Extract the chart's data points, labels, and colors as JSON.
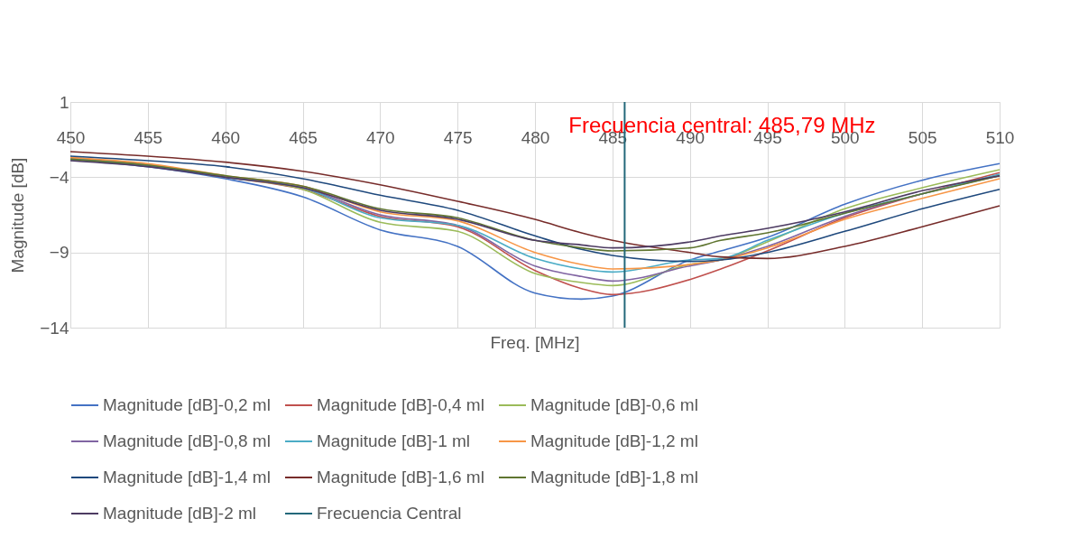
{
  "chart_data": {
    "type": "line",
    "xlabel": "Freq. [MHz]",
    "ylabel": "Magnitude [dB]",
    "x": [
      450,
      455,
      460,
      465,
      470,
      475,
      480,
      483,
      485,
      490,
      492,
      495,
      500,
      505,
      510
    ],
    "series": [
      {
        "name": "Magnitude [dB]-0,2 ml",
        "color": "#4472c4",
        "values": [
          -2.8,
          -3.3,
          -4.1,
          -5.3,
          -7.5,
          -8.6,
          -11.7,
          -12.1,
          -11.9,
          -9.5,
          -8.9,
          -8.0,
          -5.8,
          -4.2,
          -3.1
        ]
      },
      {
        "name": "Magnitude [dB]-0,4 ml",
        "color": "#c0504d",
        "values": [
          -2.7,
          -3.2,
          -4.0,
          -4.8,
          -6.6,
          -7.3,
          -10.2,
          -11.4,
          -11.8,
          -10.8,
          -10.1,
          -8.9,
          -6.7,
          -5.1,
          -3.7
        ]
      },
      {
        "name": "Magnitude [dB]-0,6 ml",
        "color": "#9bbb59",
        "values": [
          -2.8,
          -3.2,
          -4.0,
          -4.8,
          -7.0,
          -7.6,
          -10.4,
          -11.0,
          -11.2,
          -9.8,
          -9.5,
          -8.3,
          -6.1,
          -4.7,
          -3.5
        ]
      },
      {
        "name": "Magnitude [dB]-0,8 ml",
        "color": "#8064a2",
        "values": [
          -2.8,
          -3.2,
          -4.0,
          -4.7,
          -6.5,
          -7.2,
          -9.9,
          -10.6,
          -10.9,
          -9.9,
          -9.5,
          -8.6,
          -6.6,
          -5.1,
          -3.9
        ]
      },
      {
        "name": "Magnitude [dB]-1 ml",
        "color": "#4bacc6",
        "values": [
          -2.8,
          -3.2,
          -4.0,
          -4.7,
          -6.7,
          -7.2,
          -9.4,
          -10.1,
          -10.3,
          -9.5,
          -9.4,
          -8.2,
          -6.4,
          -5.1,
          -3.8
        ]
      },
      {
        "name": "Magnitude [dB]-1,2 ml",
        "color": "#f79646",
        "values": [
          -2.7,
          -3.1,
          -3.9,
          -4.6,
          -6.3,
          -6.9,
          -9.0,
          -9.8,
          -10.1,
          -9.8,
          -9.5,
          -8.7,
          -6.8,
          -5.4,
          -4.1
        ]
      },
      {
        "name": "Magnitude [dB]-1,4 ml",
        "color": "#1f497d",
        "values": [
          -2.6,
          -2.9,
          -3.3,
          -4.1,
          -5.2,
          -6.2,
          -7.9,
          -8.8,
          -9.2,
          -9.6,
          -9.5,
          -9.0,
          -7.6,
          -6.1,
          -4.8
        ]
      },
      {
        "name": "Magnitude [dB]-1,6 ml",
        "color": "#772c2a",
        "values": [
          -2.3,
          -2.6,
          -3.0,
          -3.6,
          -4.5,
          -5.6,
          -6.8,
          -7.7,
          -8.2,
          -9.0,
          -9.3,
          -9.4,
          -8.6,
          -7.3,
          -5.9
        ]
      },
      {
        "name": "Magnitude [dB]-1,8 ml",
        "color": "#5f7530",
        "values": [
          -2.8,
          -3.2,
          -3.9,
          -4.6,
          -6.1,
          -6.7,
          -8.2,
          -8.7,
          -8.9,
          -8.7,
          -8.2,
          -7.7,
          -6.4,
          -5.1,
          -3.9
        ]
      },
      {
        "name": "Magnitude [dB]-2 ml",
        "color": "#4d3b62",
        "values": [
          -2.9,
          -3.3,
          -4.0,
          -4.7,
          -6.2,
          -6.8,
          -8.2,
          -8.5,
          -8.7,
          -8.3,
          -7.9,
          -7.4,
          -6.3,
          -4.9,
          -3.9
        ]
      }
    ],
    "ref_lines": [
      {
        "axis": "x",
        "value": 485.79,
        "label": "Frecuencia Central",
        "color": "#23687a"
      }
    ],
    "annotations": [
      {
        "text": "Frecuencia central: 485,79 MHz",
        "x": 485.79,
        "y": -0.6
      }
    ],
    "xlim": [
      450,
      510
    ],
    "xticks": [
      450,
      455,
      460,
      465,
      470,
      475,
      480,
      485,
      490,
      495,
      500,
      505,
      510
    ],
    "ylim": [
      -14,
      1
    ],
    "yticks": [
      1,
      -4,
      -9,
      -14
    ],
    "grid": true,
    "legend": "bottom",
    "marker": "none",
    "line_style": "solid"
  }
}
